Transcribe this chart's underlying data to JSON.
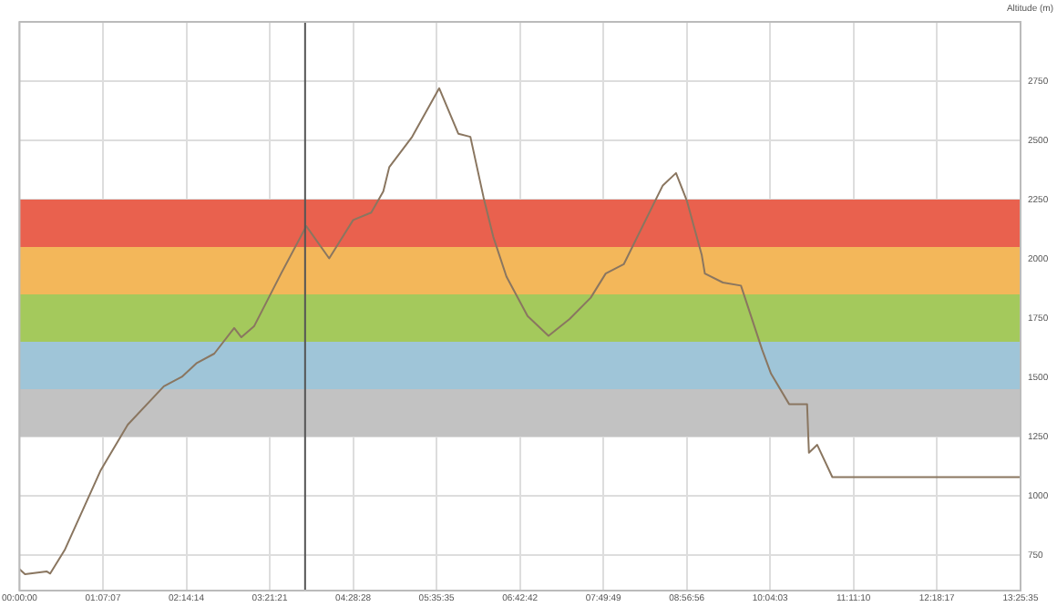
{
  "chart_data": {
    "type": "line",
    "ylabel": "Altitude (m)",
    "x": [
      0,
      0.073,
      0.363,
      0.411,
      0.605,
      1.089,
      1.451,
      1.935,
      2.177,
      2.371,
      2.612,
      2.879,
      2.975,
      3.145,
      3.508,
      3.846,
      4.153,
      4.475,
      4.717,
      4.879,
      4.959,
      5.266,
      5.629,
      5.885,
      6.047,
      6.224,
      6.355,
      6.531,
      6.814,
      7.095,
      7.378,
      7.661,
      7.862,
      8.104,
      8.346,
      8.628,
      8.805,
      8.95,
      9.151,
      9.192,
      9.434,
      9.676,
      9.959,
      10.08,
      10.322,
      10.563,
      10.588,
      10.699,
      10.902,
      13.426
    ],
    "series": [
      {
        "color": "#8a7660",
        "values": [
          690,
          669,
          681,
          672,
          771,
          1108,
          1300,
          1462,
          1502,
          1559,
          1600,
          1708,
          1669,
          1715,
          1938,
          2138,
          2002,
          2164,
          2195,
          2285,
          2387,
          2515,
          2720,
          2528,
          2515,
          2259,
          2092,
          1925,
          1759,
          1675,
          1746,
          1836,
          1938,
          1977,
          2131,
          2310,
          2362,
          2246,
          2015,
          1938,
          1900,
          1887,
          1618,
          1515,
          1387,
          1387,
          1182,
          1215,
          1079,
          1079
        ]
      }
    ],
    "xlim": [
      0,
      13.4264
    ],
    "xticks": [
      {
        "value": 0,
        "label": "00:00:00"
      },
      {
        "value": 1.11861,
        "label": "01:07:07"
      },
      {
        "value": 2.23722,
        "label": "02:14:14"
      },
      {
        "value": 3.35583,
        "label": "03:21:21"
      },
      {
        "value": 4.47444,
        "label": "04:28:28"
      },
      {
        "value": 5.59306,
        "label": "05:35:35"
      },
      {
        "value": 6.71167,
        "label": "06:42:42"
      },
      {
        "value": 7.83028,
        "label": "07:49:49"
      },
      {
        "value": 8.94889,
        "label": "08:56:56"
      },
      {
        "value": 10.0675,
        "label": "10:04:03"
      },
      {
        "value": 11.18611,
        "label": "11:11:10"
      },
      {
        "value": 12.30472,
        "label": "12:18:17"
      },
      {
        "value": 13.4264,
        "label": "13:25:35"
      }
    ],
    "ylim": [
      600,
      3000
    ],
    "yticks": [
      750,
      1000,
      1250,
      1500,
      1750,
      2000,
      2250,
      2500,
      2750
    ],
    "bands": [
      {
        "axis": "y",
        "from": 1250,
        "to": 1450,
        "color": "#c2c2c2"
      },
      {
        "axis": "y",
        "from": 1450,
        "to": 1650,
        "color": "#9fc5d8"
      },
      {
        "axis": "y",
        "from": 1650,
        "to": 1850,
        "color": "#a4c95c"
      },
      {
        "axis": "y",
        "from": 1850,
        "to": 2050,
        "color": "#f3b75a"
      },
      {
        "axis": "y",
        "from": 2050,
        "to": 2250,
        "color": "#e9614e"
      }
    ],
    "ref_lines": [
      {
        "axis": "x",
        "value": 3.83,
        "color": "#555555"
      }
    ],
    "grid": true,
    "legend": false,
    "marker": "none",
    "line_style": "solid"
  }
}
